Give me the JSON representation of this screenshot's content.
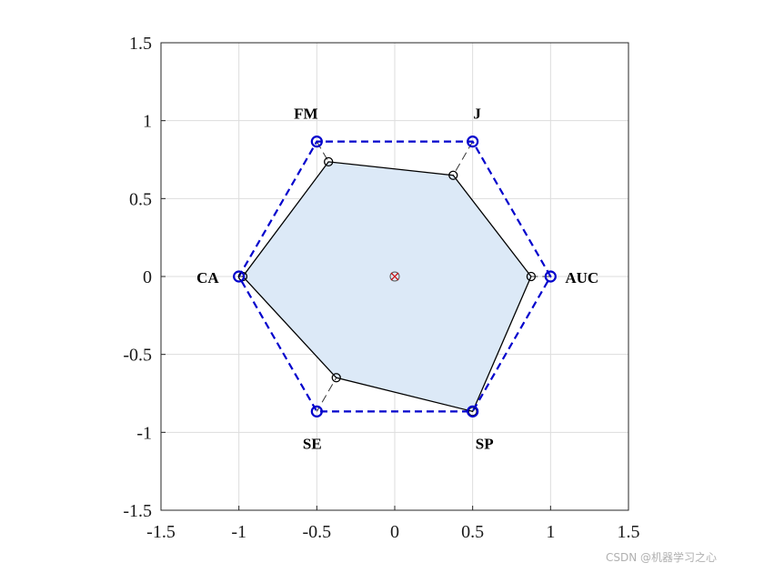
{
  "chart_data": {
    "type": "radar",
    "axes": [
      "AUC",
      "J",
      "FM",
      "CA",
      "SE",
      "SP"
    ],
    "reference_polygon": [
      1.0,
      1.0,
      1.0,
      1.0,
      1.0,
      1.0
    ],
    "series": [
      {
        "values": [
          0.875,
          0.75,
          0.85,
          0.975,
          0.75,
          1.0
        ]
      }
    ],
    "xlim": [
      -1.5,
      1.5
    ],
    "ylim": [
      -1.5,
      1.5
    ],
    "xticks": [
      "-1.5",
      "-1",
      "-0.5",
      "0",
      "0.5",
      "1",
      "1.5"
    ],
    "yticks": [
      "1.5",
      "1",
      "0.5",
      "0",
      "-0.5",
      "-1",
      "-1.5"
    ],
    "grid": true,
    "colors": {
      "fill": "#dce9f7",
      "outline": "#000000",
      "reference": "#0000cc",
      "spokes": "#333333",
      "center": "#cc0000",
      "grid": "#dddddd"
    }
  },
  "watermark": "CSDN @机器学习之心"
}
